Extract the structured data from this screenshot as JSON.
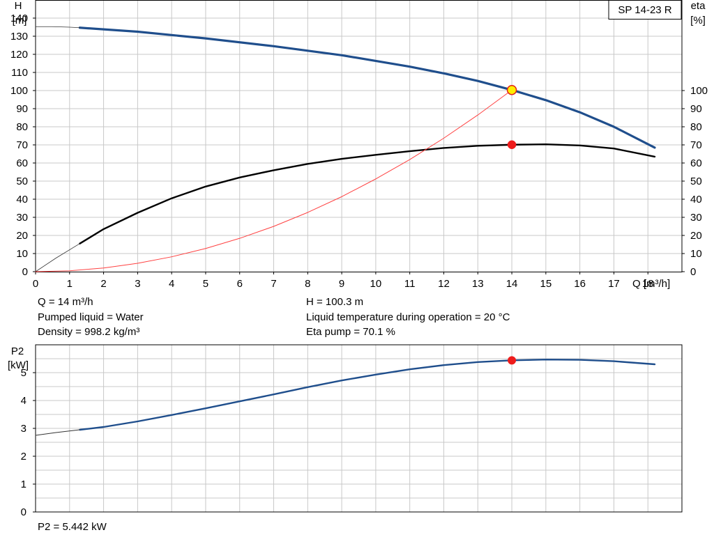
{
  "chart_data": [
    {
      "type": "line",
      "title": "SP 14-23 R",
      "xlabel": "Q [m³/h]",
      "ylabel": "H\n[m]",
      "ylabel_line1": "H",
      "ylabel_line2": "[m]",
      "y2label_line1": "eta",
      "y2label_line2": "[%]",
      "xlim": [
        0,
        19
      ],
      "ylim": [
        0,
        150
      ],
      "y2lim": [
        0,
        150
      ],
      "x_ticks": [
        0,
        1,
        2,
        3,
        4,
        5,
        6,
        7,
        8,
        9,
        10,
        11,
        12,
        13,
        14,
        15,
        16,
        17,
        18
      ],
      "y_ticks": [
        0,
        10,
        20,
        30,
        40,
        50,
        60,
        70,
        80,
        90,
        100,
        110,
        120,
        130,
        140
      ],
      "y2_ticks": [
        0,
        10,
        20,
        30,
        40,
        50,
        60,
        70,
        80,
        90,
        100
      ],
      "grid": true,
      "series": [
        {
          "key": "H",
          "color": "#1f4e8c",
          "x": [
            1.3,
            3,
            5,
            7,
            9,
            11,
            12,
            13,
            14,
            15,
            16,
            17,
            18.2
          ],
          "y": [
            134.7,
            132.5,
            128.8,
            124.5,
            119.5,
            113.2,
            109.5,
            105.3,
            100.3,
            94.7,
            88.0,
            80.0,
            68.5
          ]
        },
        {
          "key": "H_extrapolated",
          "color": "#333333",
          "x": [
            0,
            0.5,
            1.0,
            1.3
          ],
          "y": [
            135.3,
            135.3,
            135.0,
            134.7
          ]
        },
        {
          "key": "eta",
          "color": "#000000",
          "x": [
            1.3,
            2,
            3,
            4,
            5,
            6,
            7,
            8,
            9,
            10,
            11,
            12,
            13,
            14,
            15,
            16,
            17,
            18.2
          ],
          "y": [
            15.5,
            23.5,
            32.5,
            40.5,
            47,
            52,
            56,
            59.5,
            62.3,
            64.5,
            66.5,
            68.3,
            69.5,
            70.1,
            70.3,
            69.7,
            68,
            63.5
          ]
        },
        {
          "key": "eta_extrapolated",
          "color": "#333333",
          "x": [
            0,
            0.6,
            1.3
          ],
          "y": [
            0,
            7.5,
            15.5
          ]
        },
        {
          "key": "system_curve",
          "color": "#ff4040",
          "x": [
            0,
            1,
            2,
            3,
            4,
            5,
            6,
            7,
            8,
            9,
            10,
            11,
            12,
            13,
            14
          ],
          "y": [
            0,
            0.5,
            2,
            4.6,
            8.2,
            12.8,
            18.4,
            25,
            32.7,
            41.4,
            51.2,
            61.9,
            73.7,
            86.5,
            100.3
          ]
        }
      ],
      "points": [
        {
          "key": "duty_H",
          "x": 14,
          "y": 100.3,
          "fill": "#ffee00",
          "stroke": "#e0201a"
        },
        {
          "key": "duty_eta",
          "x": 14,
          "y": 70.1,
          "fill": "#ee1c1c",
          "stroke": "#ee1c1c"
        }
      ]
    },
    {
      "type": "line",
      "ylabel_line1": "P2",
      "ylabel_line2": "[kW]",
      "xlim": [
        0,
        19
      ],
      "ylim": [
        0,
        6
      ],
      "y_ticks": [
        0,
        1,
        2,
        3,
        4,
        5
      ],
      "grid": true,
      "series": [
        {
          "key": "P2",
          "color": "#1f4e8c",
          "x": [
            1.3,
            2,
            3,
            4,
            5,
            6,
            7,
            8,
            9,
            10,
            11,
            12,
            13,
            14,
            15,
            16,
            17,
            18.2
          ],
          "y": [
            2.95,
            3.05,
            3.25,
            3.48,
            3.72,
            3.97,
            4.22,
            4.48,
            4.72,
            4.93,
            5.12,
            5.27,
            5.38,
            5.442,
            5.47,
            5.46,
            5.41,
            5.3
          ]
        },
        {
          "key": "P2_extrapolated",
          "color": "#333333",
          "x": [
            0,
            0.6,
            1.3
          ],
          "y": [
            2.75,
            2.85,
            2.95
          ]
        }
      ],
      "points": [
        {
          "key": "duty_P2",
          "x": 14,
          "y": 5.442,
          "fill": "#ee1c1c",
          "stroke": "#ee1c1c"
        }
      ]
    }
  ],
  "info": {
    "q": "Q = 14 m³/h",
    "liquid": "Pumped liquid = Water",
    "density": "Density = 998.2 kg/m³",
    "h": "H = 100.3 m",
    "temp": "Liquid temperature during operation = 20 °C",
    "eta": "Eta pump = 70.1 %",
    "p2": "P2 = 5.442 kW"
  }
}
